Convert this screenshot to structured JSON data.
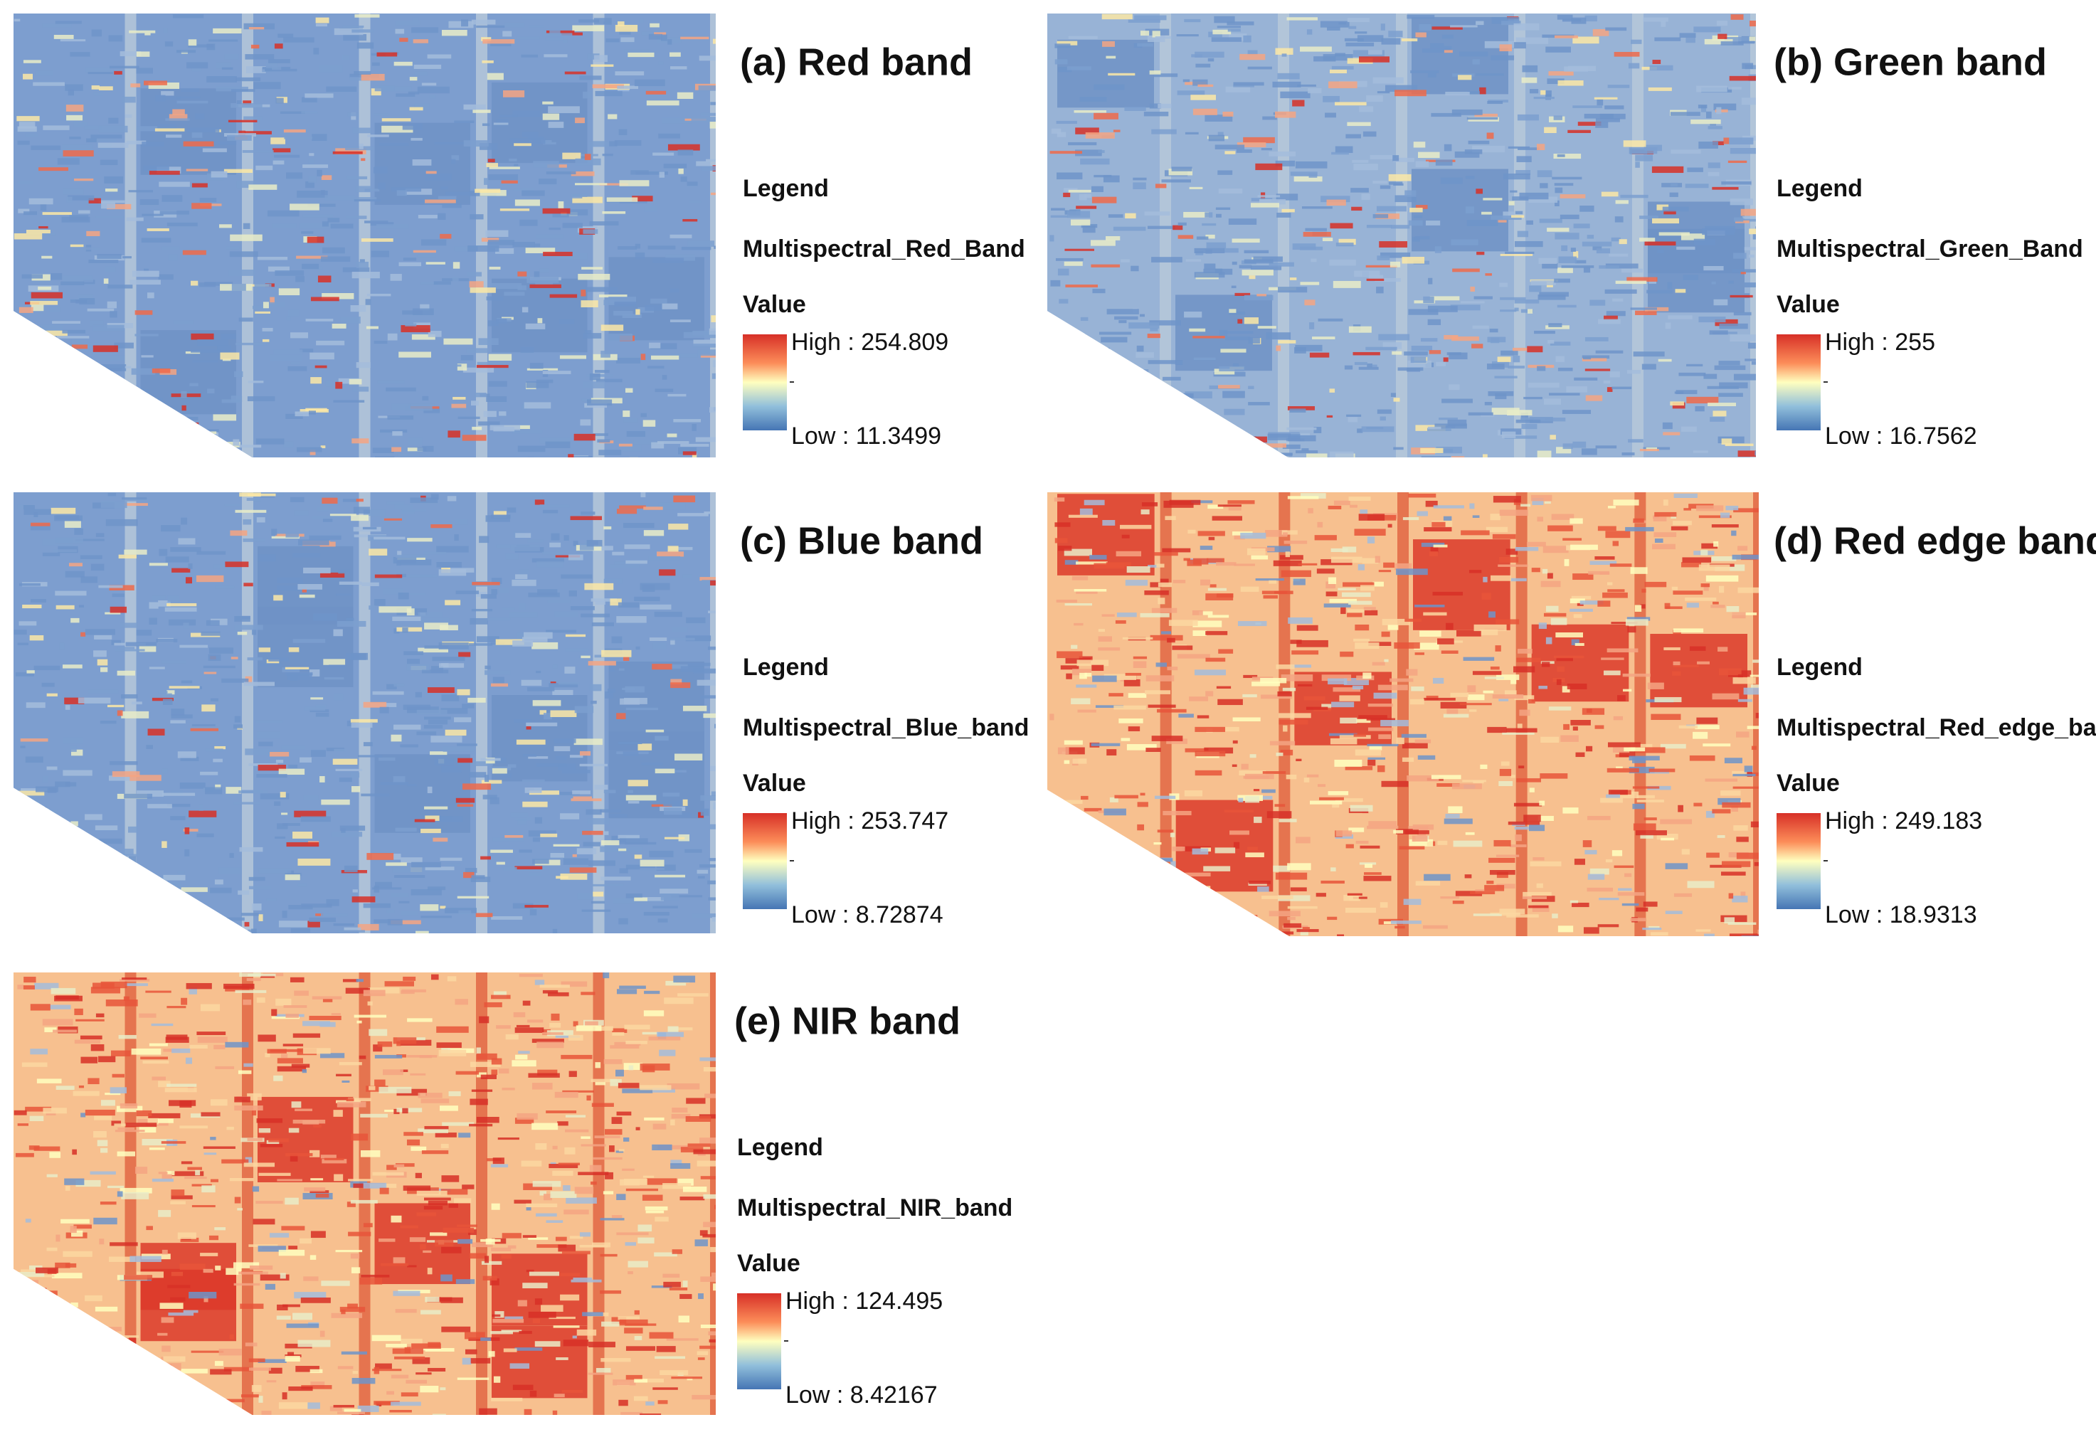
{
  "panels": [
    {
      "title": "(a) Red band",
      "legend": "Legend",
      "layer": "Multispectral_Red_Band",
      "value": "Value",
      "high": "High : 254.809",
      "low": "Low : 11.3499"
    },
    {
      "title": "(b) Green band",
      "legend": "Legend",
      "layer": "Multispectral_Green_Band",
      "value": "Value",
      "high": "High : 255",
      "low": "Low : 16.7562"
    },
    {
      "title": "(c) Blue band",
      "legend": "Legend",
      "layer": "Multispectral_Blue_band",
      "value": "Value",
      "high": "High : 253.747",
      "low": "Low : 8.72874"
    },
    {
      "title": "(d) Red edge band",
      "legend": "Legend",
      "layer": "Multispectral_Red_edge_band",
      "value": "Value",
      "high": "High : 249.183",
      "low": "Low : 18.9313"
    },
    {
      "title": "(e) NIR band",
      "legend": "Legend",
      "layer": "Multispectral_NIR_band",
      "value": "Value",
      "high": "High : 124.495",
      "low": "Low : 8.42167"
    }
  ]
}
